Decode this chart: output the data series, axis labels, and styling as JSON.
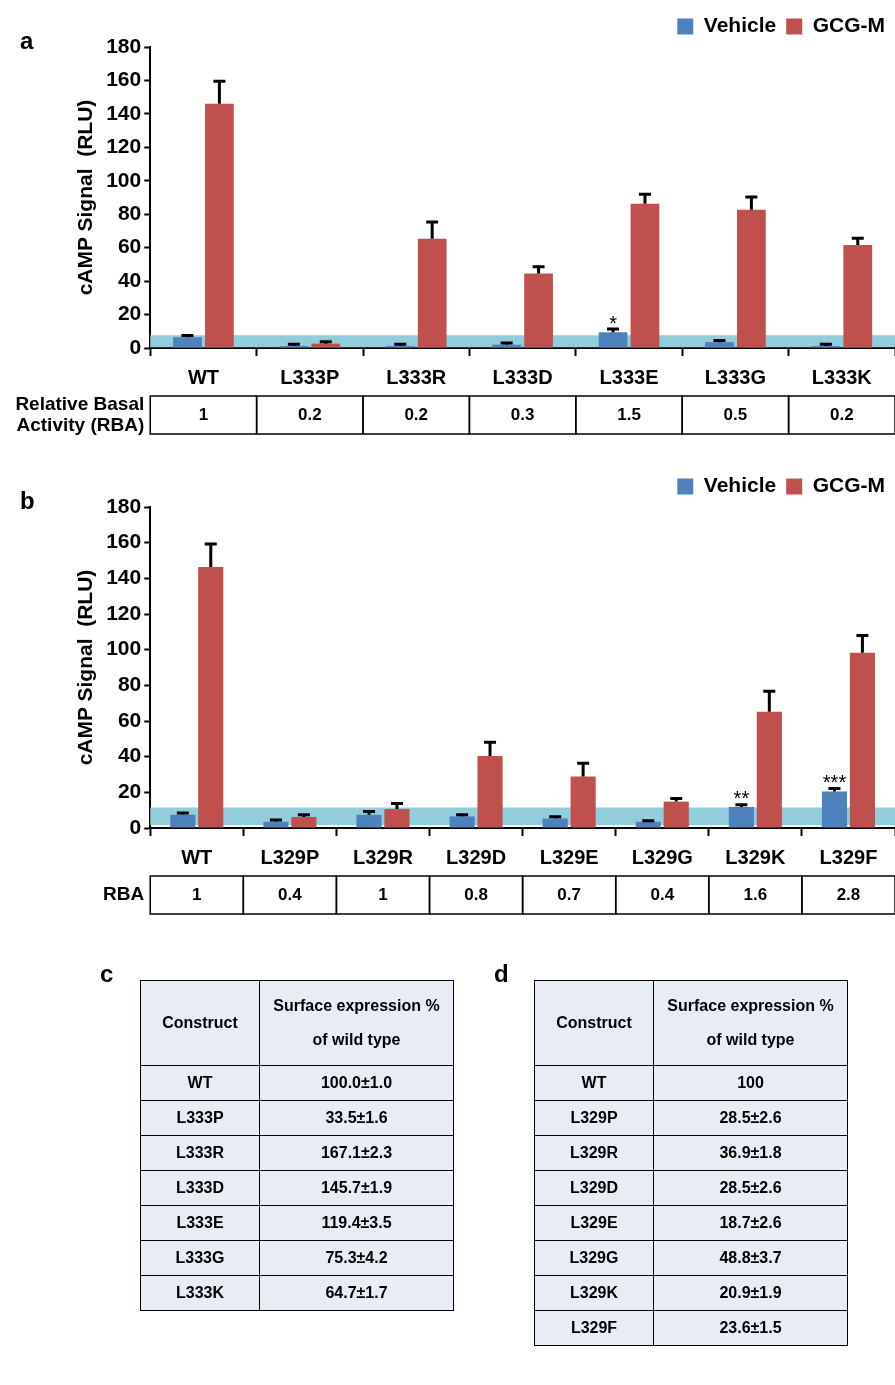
{
  "chart_data": [
    {
      "type": "bar",
      "title": "a",
      "ylabel": "cAMP Signal  (RLU)",
      "categories": [
        "WT",
        "L333P",
        "L333R",
        "L333D",
        "L333E",
        "L333G",
        "L333K"
      ],
      "series": [
        {
          "name": "Vehicle",
          "color": "#4f81bd",
          "values": [
            6.5,
            1.2,
            1.2,
            2,
            9.4,
            3.5,
            1.2
          ],
          "errors": [
            [
              6.5,
              7.5
            ],
            [
              1.2,
              2.2
            ],
            [
              1.2,
              2.2
            ],
            [
              2,
              3
            ],
            [
              9.4,
              11.4
            ],
            [
              3.5,
              4.5
            ],
            [
              1.2,
              2.2
            ]
          ]
        },
        {
          "name": "GCG-M",
          "color": "#c0504d",
          "values": [
            146,
            2.6,
            65.4,
            44.6,
            86.2,
            82.7,
            61.6
          ],
          "errors": [
            [
              146,
              159.5
            ],
            [
              2.6,
              3.8
            ],
            [
              65.4,
              75.4
            ],
            [
              44.6,
              48.6
            ],
            [
              86.2,
              92
            ],
            [
              82.7,
              90.3
            ],
            [
              61.6,
              65.6
            ]
          ]
        }
      ],
      "ylim": [
        0,
        180
      ],
      "yticks": [
        0,
        20,
        40,
        60,
        80,
        100,
        120,
        140,
        160,
        180
      ],
      "legend": "top right",
      "bands": [
        {
          "axis": "y",
          "from": 0.5,
          "to": 7.6,
          "color": "#92cddc"
        }
      ],
      "annotations": [
        {
          "text": "*",
          "x": "L333E",
          "y": 13
        },
        "Relative Basal Activity (RBA)",
        "1",
        "0.2",
        "0.2",
        "0.3",
        "1.5",
        "0.5",
        "0.2"
      ]
    },
    {
      "type": "bar",
      "title": "b",
      "ylabel": "cAMP Signal  (RLU)",
      "categories": [
        "WT",
        "L329P",
        "L329R",
        "L329D",
        "L329E",
        "L329G",
        "L329K",
        "L329F"
      ],
      "series": [
        {
          "name": "Vehicle",
          "color": "#4f81bd",
          "values": [
            7.4,
            3.5,
            7.4,
            6.5,
            5.3,
            3.5,
            11.8,
            20.4
          ],
          "errors": [
            [
              7.4,
              8.4
            ],
            [
              3.5,
              4.5
            ],
            [
              7.4,
              9.2
            ],
            [
              6.5,
              7.5
            ],
            [
              5.3,
              6.3
            ],
            [
              3.5,
              4.1
            ],
            [
              11.8,
              13
            ],
            [
              20.4,
              22.2
            ]
          ]
        },
        {
          "name": "GCG-M",
          "color": "#c0504d",
          "values": [
            146.4,
            6.2,
            10.6,
            40.4,
            28.9,
            14.8,
            65.2,
            98.3
          ],
          "errors": [
            [
              146.4,
              159.3
            ],
            [
              6.2,
              7.4
            ],
            [
              10.6,
              13.8
            ],
            [
              40.4,
              48.1
            ],
            [
              28.9,
              36.3
            ],
            [
              14.8,
              16.6
            ],
            [
              65.2,
              76.7
            ],
            [
              98.3,
              108
            ]
          ]
        }
      ],
      "ylim": [
        0,
        180
      ],
      "yticks": [
        0,
        20,
        40,
        60,
        80,
        100,
        120,
        140,
        160,
        180
      ],
      "legend": "top right",
      "bands": [
        {
          "axis": "y",
          "from": 1.5,
          "to": 11.5,
          "color": "#92cddc"
        }
      ],
      "annotations": [
        {
          "text": "**",
          "x": "L329K",
          "y": 15
        },
        {
          "text": "***",
          "x": "L329F",
          "y": 24
        },
        "RBA",
        "1",
        "0.4",
        "1",
        "0.8",
        "0.7",
        "0.4",
        "1.6",
        "2.8"
      ]
    },
    {
      "type": "other",
      "title": "c",
      "annotations": [
        "Construct",
        "Surface expression % of wild type",
        "WT",
        "100.0±1.0",
        "L333P",
        "33.5±1.6",
        "L333R",
        "167.1±2.3",
        "L333D",
        "145.7±1.9",
        "L333E",
        "119.4±3.5",
        "L333G",
        "75.3±4.2",
        "L333K",
        "64.7±1.7"
      ]
    },
    {
      "type": "other",
      "title": "d",
      "annotations": [
        "Construct",
        "Surface expression % of wild type",
        "WT",
        "100",
        "L329P",
        "28.5±2.6",
        "L329R",
        "36.9±1.8",
        "L329D",
        "28.5±2.6",
        "L329E",
        "18.7±2.6",
        "L329G",
        "48.8±3.7",
        "L329K",
        "20.9±1.9",
        "L329F",
        "23.6±1.5"
      ]
    }
  ]
}
